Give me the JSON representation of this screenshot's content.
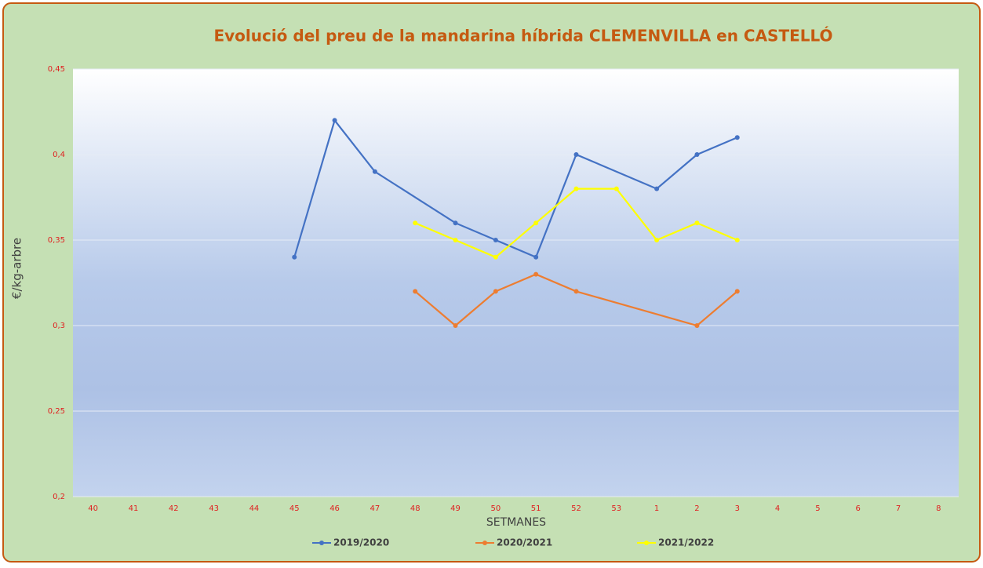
{
  "chart_data": {
    "type": "line",
    "title": "Evolució del preu de la mandarina híbrida CLEMENVILLA en CASTELLÓ",
    "x_label": "SETMANES",
    "y_label": "€/kg-arbre",
    "categories": [
      "40",
      "41",
      "42",
      "43",
      "44",
      "45",
      "46",
      "47",
      "48",
      "49",
      "50",
      "51",
      "52",
      "53",
      "1",
      "2",
      "3",
      "4",
      "5",
      "6",
      "7",
      "8"
    ],
    "series": [
      {
        "name": "2019/2020",
        "color": "#4472c4",
        "values": [
          null,
          null,
          null,
          null,
          null,
          0.34,
          0.42,
          0.39,
          null,
          0.36,
          0.35,
          0.34,
          0.4,
          null,
          0.38,
          0.4,
          0.41,
          null,
          null,
          null,
          null,
          null
        ]
      },
      {
        "name": "2020/2021",
        "color": "#ed7d31",
        "values": [
          null,
          null,
          null,
          null,
          null,
          null,
          null,
          null,
          0.32,
          0.3,
          0.32,
          0.33,
          0.32,
          null,
          null,
          0.3,
          0.32,
          null,
          null,
          null,
          null,
          null
        ]
      },
      {
        "name": "2021/2022",
        "color": "#ffff00",
        "values": [
          null,
          null,
          null,
          null,
          null,
          null,
          null,
          null,
          0.36,
          0.35,
          0.34,
          0.36,
          0.38,
          0.38,
          0.35,
          0.36,
          0.35,
          null,
          null,
          null,
          null,
          null
        ]
      }
    ],
    "ylim": [
      0.2,
      0.45
    ],
    "yticks": [
      {
        "value": 0.2,
        "label": "0,2"
      },
      {
        "value": 0.25,
        "label": "0,25"
      },
      {
        "value": 0.3,
        "label": "0,3"
      },
      {
        "value": 0.35,
        "label": "0,35"
      },
      {
        "value": 0.4,
        "label": "0,4"
      },
      {
        "value": 0.45,
        "label": "0,45"
      }
    ],
    "grid": true,
    "connect_gaps": true,
    "legend": "bottom"
  }
}
